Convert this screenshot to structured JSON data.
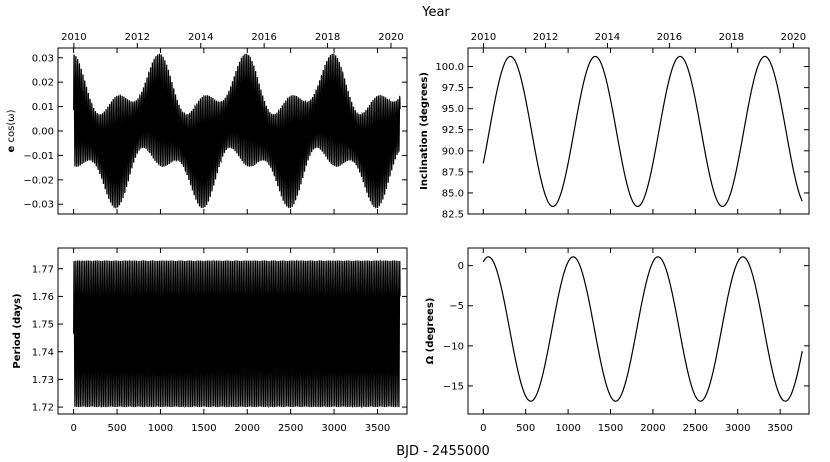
{
  "figure": {
    "top_label": "Year",
    "bottom_label": "BJD - 2455000"
  },
  "chart_data": [
    {
      "type": "line",
      "panel": "top-left",
      "ylabel_bold": "e",
      "ylabel_rest": " cos(ω)",
      "xlabel": "",
      "xlim": [
        -180,
        3840
      ],
      "ylim": [
        -0.034,
        0.034
      ],
      "yticks": [
        -0.03,
        -0.02,
        -0.01,
        0.0,
        0.01,
        0.02,
        0.03
      ],
      "ytick_labels": [
        "−0.03",
        "−0.02",
        "−0.01",
        "0.00",
        "0.01",
        "0.02",
        "0.03"
      ],
      "xticks": [
        0,
        500,
        1000,
        1500,
        2000,
        2500,
        3000,
        3500
      ],
      "series": [
        {
          "model": "amplitude-modulated oscillation",
          "x_range": [
            0,
            3760
          ],
          "samples": 4000,
          "center_amplitude": 0.009,
          "center_period_days": 1000,
          "center_phase_at_x0": 0.3,
          "envelope_mean": 0.017,
          "envelope_amplitude": 0.006,
          "envelope_period_days": 500,
          "oscillation_period_days": 20.5
        }
      ]
    },
    {
      "type": "line",
      "panel": "top-right",
      "ylabel": "Inclination (degrees)",
      "xlim": [
        -180,
        3840
      ],
      "ylim": [
        82.5,
        102.2
      ],
      "yticks": [
        82.5,
        85.0,
        87.5,
        90.0,
        92.5,
        95.0,
        97.5,
        100.0
      ],
      "ytick_labels": [
        "82.5",
        "85.0",
        "87.5",
        "90.0",
        "92.5",
        "95.0",
        "97.5",
        "100.0"
      ],
      "xticks": [
        0,
        500,
        1000,
        1500,
        2000,
        2500,
        3000,
        3500
      ],
      "series": [
        {
          "model": "sinusoid",
          "x_range": [
            0,
            3760
          ],
          "samples": 800,
          "mean": 92.3,
          "amplitude": 8.9,
          "period_days": 1000,
          "peak_at_x": 320
        }
      ]
    },
    {
      "type": "line",
      "panel": "bottom-left",
      "ylabel": "Period (days)",
      "xlabel": "",
      "xlim": [
        -180,
        3840
      ],
      "ylim": [
        1.7175,
        1.7775
      ],
      "yticks": [
        1.72,
        1.73,
        1.74,
        1.75,
        1.76,
        1.77
      ],
      "ytick_labels": [
        "1.72",
        "1.73",
        "1.74",
        "1.75",
        "1.76",
        "1.77"
      ],
      "xticks": [
        0,
        500,
        1000,
        1500,
        2000,
        2500,
        3000,
        3500
      ],
      "xtick_labels": [
        "0",
        "500",
        "1000",
        "1500",
        "2000",
        "2500",
        "3000",
        "3500"
      ],
      "series": [
        {
          "model": "fast oscillation",
          "x_range": [
            0,
            3760
          ],
          "samples": 4000,
          "mean": 1.7465,
          "amplitude": 0.0265,
          "oscillation_period_days": 20.5
        }
      ]
    },
    {
      "type": "line",
      "panel": "bottom-right",
      "ylabel": "Ω (degrees)",
      "xlim": [
        -180,
        3840
      ],
      "ylim": [
        -18.5,
        2.2
      ],
      "yticks": [
        -15,
        -10,
        -5,
        0
      ],
      "ytick_labels": [
        "−15",
        "−10",
        "−5",
        "0"
      ],
      "xticks": [
        0,
        500,
        1000,
        1500,
        2000,
        2500,
        3000,
        3500
      ],
      "xtick_labels": [
        "0",
        "500",
        "1000",
        "1500",
        "2000",
        "2500",
        "3000",
        "3500"
      ],
      "series": [
        {
          "model": "sinusoid",
          "x_range": [
            0,
            3760
          ],
          "samples": 800,
          "mean": -7.9,
          "amplitude": 9.0,
          "period_days": 1000,
          "peak_at_x": 60
        }
      ]
    }
  ],
  "year_axis": {
    "ticks": [
      2010,
      2012,
      2014,
      2016,
      2018,
      2020
    ],
    "day_offset": 3,
    "days_per_year": 365.25
  },
  "colors": {
    "line": "#000000",
    "axes": "#000000",
    "background": "#ffffff"
  }
}
